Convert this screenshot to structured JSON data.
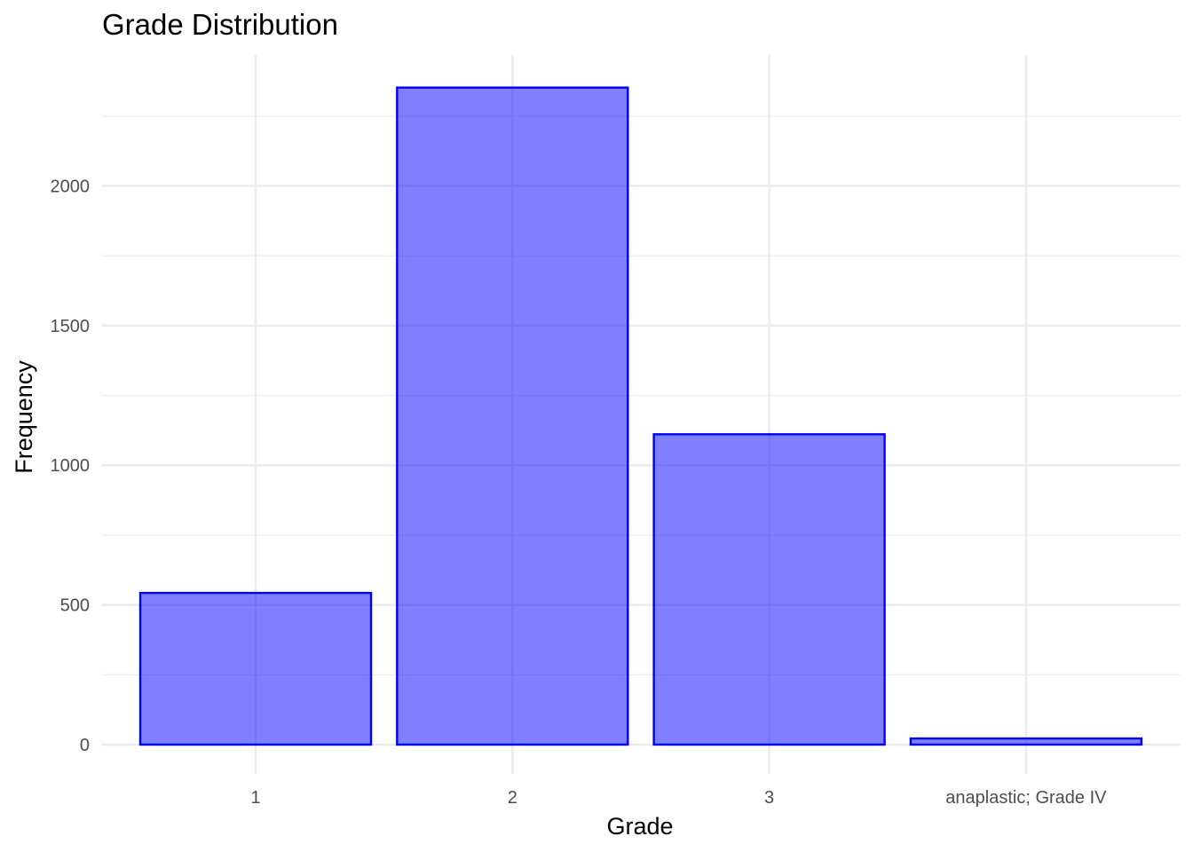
{
  "chart_data": {
    "type": "bar",
    "title": "Grade Distribution",
    "xlabel": "Grade",
    "ylabel": "Frequency",
    "categories": [
      "1",
      "2",
      "3",
      "anaplastic; Grade IV"
    ],
    "values": [
      543,
      2352,
      1111,
      22
    ],
    "ylim": [
      -100,
      2450
    ],
    "yticks": [
      0,
      500,
      1000,
      1500,
      2000
    ],
    "grid": true,
    "legend": "none",
    "colors": {
      "bar_fill": "#0000ff",
      "bar_fill_opacity": 0.5,
      "bar_stroke": "#0000ff",
      "grid": "#ebebeb",
      "tick_text": "#4d4d4d",
      "text": "#000000"
    }
  }
}
